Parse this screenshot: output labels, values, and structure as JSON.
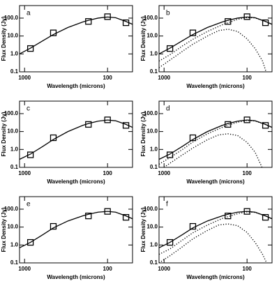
{
  "chart_data": [
    {
      "type": "line",
      "label": "a",
      "xlabel": "Wavelength (microns)",
      "ylabel": "Flux Density (Jy)",
      "xscale": "log",
      "yscale": "log",
      "xlim": [
        1150,
        50
      ],
      "ylim": [
        0.1,
        500
      ],
      "xticks": [
        1000,
        100
      ],
      "yticks": [
        0.1,
        {
          "value": 1,
          "label": "1.0"
        },
        {
          "value": 10,
          "label": "10.0"
        },
        {
          "value": 100,
          "label": "100.0"
        }
      ],
      "series": [
        {
          "style": "markers",
          "color": "#000000",
          "x": [
            850,
            450,
            170,
            100,
            60
          ],
          "values": [
            2.0,
            15,
            65,
            120,
            55
          ]
        },
        {
          "style": "solid",
          "color": "#000000",
          "x": [
            1150,
            850,
            600,
            450,
            300,
            200,
            170,
            130,
            100,
            80,
            60,
            50
          ],
          "values": [
            1.0,
            2.1,
            5.5,
            12,
            30,
            60,
            75,
            100,
            115,
            105,
            65,
            45
          ]
        }
      ]
    },
    {
      "type": "line",
      "label": "b",
      "xlabel": "Wavelength (microns)",
      "ylabel": "Flux Density (Jy)",
      "xscale": "log",
      "yscale": "log",
      "xlim": [
        1150,
        50
      ],
      "ylim": [
        0.1,
        500
      ],
      "xticks": [
        1000,
        100
      ],
      "yticks": [
        0.1,
        {
          "value": 1,
          "label": "1.0"
        },
        {
          "value": 10,
          "label": "10.0"
        },
        {
          "value": 100,
          "label": "100.0"
        }
      ],
      "series": [
        {
          "style": "markers",
          "color": "#000000",
          "x": [
            850,
            450,
            170,
            100,
            60
          ],
          "values": [
            2.0,
            15,
            65,
            120,
            55
          ]
        },
        {
          "style": "solid",
          "color": "#000000",
          "x": [
            1150,
            850,
            600,
            450,
            300,
            200,
            170,
            130,
            100,
            80,
            60,
            50
          ],
          "values": [
            1.0,
            2.1,
            5.5,
            12,
            30,
            60,
            75,
            100,
            115,
            105,
            65,
            45
          ]
        },
        {
          "style": "dotted",
          "color": "#000000",
          "x": [
            1150,
            850,
            600,
            450,
            300,
            200,
            170,
            130,
            100,
            80,
            60,
            50
          ],
          "values": [
            0.4,
            0.9,
            2.8,
            6.5,
            18,
            42,
            55,
            85,
            108,
            102,
            65,
            45
          ]
        },
        {
          "style": "dotted",
          "color": "#000000",
          "x": [
            1150,
            850,
            600,
            450,
            300,
            220,
            170,
            130,
            100,
            80,
            65,
            59
          ],
          "values": [
            0.17,
            0.45,
            1.4,
            3.5,
            10,
            20,
            24,
            18,
            7,
            2,
            0.4,
            0.1
          ]
        }
      ]
    },
    {
      "type": "line",
      "label": "c",
      "xlabel": "Wavelength (microns)",
      "ylabel": "Flux Density (Jy)",
      "xscale": "log",
      "yscale": "log",
      "xlim": [
        1150,
        50
      ],
      "ylim": [
        0.1,
        500
      ],
      "xticks": [
        1000,
        100
      ],
      "yticks": [
        0.1,
        {
          "value": 1,
          "label": "1.0"
        },
        {
          "value": 10,
          "label": "10.0"
        },
        {
          "value": 100,
          "label": "100.0"
        }
      ],
      "series": [
        {
          "style": "markers",
          "color": "#000000",
          "x": [
            850,
            450,
            170,
            100,
            60
          ],
          "values": [
            0.5,
            4.5,
            25,
            45,
            22
          ]
        },
        {
          "style": "solid",
          "color": "#000000",
          "x": [
            1150,
            850,
            600,
            450,
            300,
            200,
            170,
            130,
            100,
            80,
            60,
            50
          ],
          "values": [
            0.28,
            0.55,
            1.5,
            3.6,
            10,
            22,
            28,
            38,
            44,
            40,
            25,
            17
          ]
        }
      ]
    },
    {
      "type": "line",
      "label": "d",
      "xlabel": "Wavelength (microns)",
      "ylabel": "Flux Density (Jy)",
      "xscale": "log",
      "yscale": "log",
      "xlim": [
        1150,
        50
      ],
      "ylim": [
        0.1,
        500
      ],
      "xticks": [
        1000,
        100
      ],
      "yticks": [
        0.1,
        {
          "value": 1,
          "label": "1.0"
        },
        {
          "value": 10,
          "label": "10.0"
        },
        {
          "value": 100,
          "label": "100.0"
        }
      ],
      "series": [
        {
          "style": "markers",
          "color": "#000000",
          "x": [
            850,
            450,
            170,
            100,
            60
          ],
          "values": [
            0.5,
            4.5,
            25,
            45,
            22
          ]
        },
        {
          "style": "solid",
          "color": "#000000",
          "x": [
            1150,
            850,
            600,
            450,
            300,
            200,
            170,
            130,
            100,
            80,
            60,
            50
          ],
          "values": [
            0.28,
            0.55,
            1.5,
            3.6,
            10,
            22,
            28,
            38,
            44,
            40,
            25,
            17
          ]
        },
        {
          "style": "dotted",
          "color": "#000000",
          "x": [
            1150,
            850,
            600,
            450,
            300,
            200,
            170,
            130,
            100,
            80,
            60,
            50
          ],
          "values": [
            0.15,
            0.35,
            1.0,
            2.6,
            7.5,
            17,
            23,
            33,
            42,
            39,
            25,
            17
          ]
        },
        {
          "style": "dotted",
          "color": "#000000",
          "x": [
            1000,
            850,
            600,
            450,
            300,
            220,
            170,
            130,
            100,
            80,
            66
          ],
          "values": [
            0.1,
            0.17,
            0.5,
            1.2,
            3.5,
            6.5,
            7.5,
            6,
            2.5,
            0.7,
            0.1
          ]
        }
      ]
    },
    {
      "type": "line",
      "label": "e",
      "xlabel": "Wavelength (microns)",
      "ylabel": "Flux Density (Jy)",
      "xscale": "log",
      "yscale": "log",
      "xlim": [
        1150,
        50
      ],
      "ylim": [
        0.1,
        500
      ],
      "xticks": [
        1000,
        100
      ],
      "yticks": [
        0.1,
        {
          "value": 1,
          "label": "1.0"
        },
        {
          "value": 10,
          "label": "10.0"
        },
        {
          "value": 100,
          "label": "100.0"
        }
      ],
      "series": [
        {
          "style": "markers",
          "color": "#000000",
          "x": [
            850,
            450,
            170,
            100,
            60
          ],
          "values": [
            1.4,
            11,
            42,
            75,
            35
          ]
        },
        {
          "style": "solid",
          "color": "#000000",
          "x": [
            1150,
            850,
            600,
            450,
            300,
            200,
            170,
            130,
            100,
            80,
            60,
            50
          ],
          "values": [
            0.7,
            1.4,
            3.8,
            9,
            22,
            42,
            52,
            68,
            75,
            68,
            42,
            29
          ]
        }
      ]
    },
    {
      "type": "line",
      "label": "f",
      "xlabel": "Wavelength (microns)",
      "ylabel": "Flux Density (Jy)",
      "xscale": "log",
      "yscale": "log",
      "xlim": [
        1150,
        50
      ],
      "ylim": [
        0.1,
        500
      ],
      "xticks": [
        1000,
        100
      ],
      "yticks": [
        0.1,
        {
          "value": 1,
          "label": "1.0"
        },
        {
          "value": 10,
          "label": "10.0"
        },
        {
          "value": 100,
          "label": "100.0"
        }
      ],
      "series": [
        {
          "style": "markers",
          "color": "#000000",
          "x": [
            850,
            450,
            170,
            100,
            60
          ],
          "values": [
            1.4,
            11,
            42,
            75,
            35
          ]
        },
        {
          "style": "solid",
          "color": "#000000",
          "x": [
            1150,
            850,
            600,
            450,
            300,
            200,
            170,
            130,
            100,
            80,
            60,
            50
          ],
          "values": [
            0.7,
            1.4,
            3.8,
            9,
            22,
            42,
            52,
            68,
            75,
            68,
            42,
            29
          ]
        },
        {
          "style": "dotted",
          "color": "#000000",
          "x": [
            1150,
            850,
            600,
            450,
            300,
            200,
            170,
            130,
            100,
            80,
            60,
            50
          ],
          "values": [
            0.3,
            0.6,
            1.9,
            4.8,
            13,
            30,
            38,
            56,
            70,
            66,
            42,
            29
          ]
        },
        {
          "style": "dotted",
          "color": "#000000",
          "x": [
            1150,
            850,
            600,
            450,
            300,
            220,
            170,
            130,
            100,
            80,
            65,
            58
          ],
          "values": [
            0.1,
            0.25,
            0.8,
            2.2,
            6.5,
            13,
            15,
            12,
            5,
            1.4,
            0.3,
            0.1
          ]
        }
      ]
    }
  ]
}
